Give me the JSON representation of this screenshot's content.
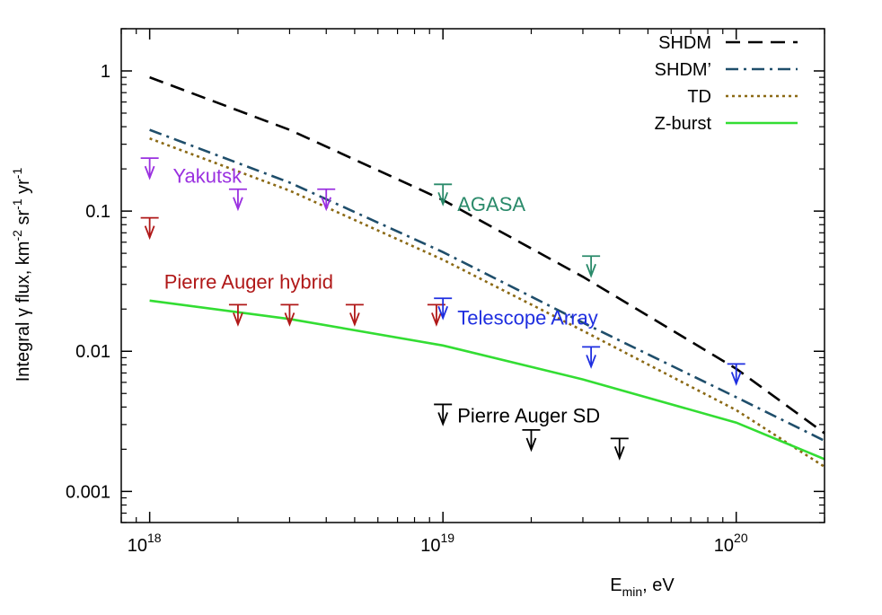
{
  "chart_data": {
    "type": "line",
    "scale": {
      "x": "log",
      "y": "log"
    },
    "xlim": [
      8e+17,
      2e+20
    ],
    "ylim": [
      0.0006,
      2
    ],
    "ylabel": {
      "base": "Integral ",
      "gamma": "γ",
      "mid1": " flux, km",
      "sup1": "-2",
      "mid2": " sr",
      "sup2": "-1",
      "mid3": " yr",
      "sup3": "-1"
    },
    "xlabel": {
      "base": "E",
      "sub": "min",
      "rest": ", eV"
    },
    "y_ticks": [
      {
        "value": 1,
        "label": "1"
      },
      {
        "value": 0.1,
        "label": "0.1"
      },
      {
        "value": 0.01,
        "label": "0.01"
      },
      {
        "value": 0.001,
        "label": "0.001"
      }
    ],
    "x_ticks": [
      {
        "value": 1e+18,
        "base": "10",
        "exp": "18"
      },
      {
        "value": 1e+19,
        "base": "10",
        "exp": "19"
      },
      {
        "value": 1e+20,
        "base": "10",
        "exp": "20"
      }
    ],
    "legend_position": "top-right",
    "series": [
      {
        "name": "SHDM",
        "color": "#000000",
        "dash": "long-dash",
        "points": [
          [
            1e+18,
            0.9
          ],
          [
            3e+18,
            0.38
          ],
          [
            1e+19,
            0.12
          ],
          [
            3e+19,
            0.034
          ],
          [
            1e+20,
            0.0075
          ],
          [
            2e+20,
            0.0026
          ]
        ]
      },
      {
        "name": "SHDM’",
        "color": "#1f4e6b",
        "dash": "dash-dot",
        "points": [
          [
            1e+18,
            0.38
          ],
          [
            3e+18,
            0.16
          ],
          [
            1e+19,
            0.051
          ],
          [
            3e+19,
            0.016
          ],
          [
            1e+20,
            0.0047
          ],
          [
            2e+20,
            0.0023
          ]
        ]
      },
      {
        "name": "TD",
        "color": "#8b6914",
        "dash": "dot",
        "points": [
          [
            1e+18,
            0.33
          ],
          [
            3e+18,
            0.14
          ],
          [
            1e+19,
            0.045
          ],
          [
            3e+19,
            0.014
          ],
          [
            1e+20,
            0.0038
          ],
          [
            2e+20,
            0.0015
          ]
        ]
      },
      {
        "name": "Z-burst",
        "color": "#33dd33",
        "dash": "solid",
        "points": [
          [
            1e+18,
            0.023
          ],
          [
            3e+18,
            0.017
          ],
          [
            1e+19,
            0.011
          ],
          [
            3e+19,
            0.0063
          ],
          [
            1e+20,
            0.0031
          ],
          [
            2e+20,
            0.0017
          ]
        ]
      }
    ],
    "limits": [
      {
        "experiment": "Yakutsk",
        "color": "#9a30e0",
        "points": [
          [
            1e+18,
            0.2
          ],
          [
            2e+18,
            0.12
          ],
          [
            4e+18,
            0.12
          ]
        ]
      },
      {
        "experiment": "Pierre Auger hybrid",
        "color": "#b01818",
        "points": [
          [
            1e+18,
            0.075
          ],
          [
            2e+18,
            0.018
          ],
          [
            3e+18,
            0.018
          ],
          [
            5e+18,
            0.018
          ],
          [
            9.5e+18,
            0.018
          ]
        ]
      },
      {
        "experiment": "AGASA",
        "color": "#2a8a6a",
        "points": [
          [
            1e+19,
            0.13
          ],
          [
            3.2e+19,
            0.04
          ]
        ]
      },
      {
        "experiment": "Telescope Array",
        "color": "#1f2fe0",
        "points": [
          [
            1e+19,
            0.02
          ],
          [
            3.2e+19,
            0.009
          ],
          [
            1e+20,
            0.0068
          ]
        ]
      },
      {
        "experiment": "Pierre Auger SD",
        "color": "#000000",
        "points": [
          [
            1e+19,
            0.0035
          ],
          [
            2e+19,
            0.0023
          ],
          [
            4e+19,
            0.002
          ]
        ]
      }
    ],
    "annotations": [
      {
        "text": "Yakutsk",
        "color": "#9a30e0",
        "x": 1.2e+18,
        "y": 0.16
      },
      {
        "text": "AGASA",
        "color": "#2a8a6a",
        "x": 1.12e+19,
        "y": 0.1
      },
      {
        "text": "Pierre Auger hybrid",
        "color": "#b01818",
        "x": 1.12e+18,
        "y": 0.028
      },
      {
        "text": "Telescope Array",
        "color": "#1f2fe0",
        "x": 1.12e+19,
        "y": 0.0155
      },
      {
        "text": "Pierre Auger SD",
        "color": "#000000",
        "x": 1.12e+19,
        "y": 0.0031
      }
    ]
  }
}
